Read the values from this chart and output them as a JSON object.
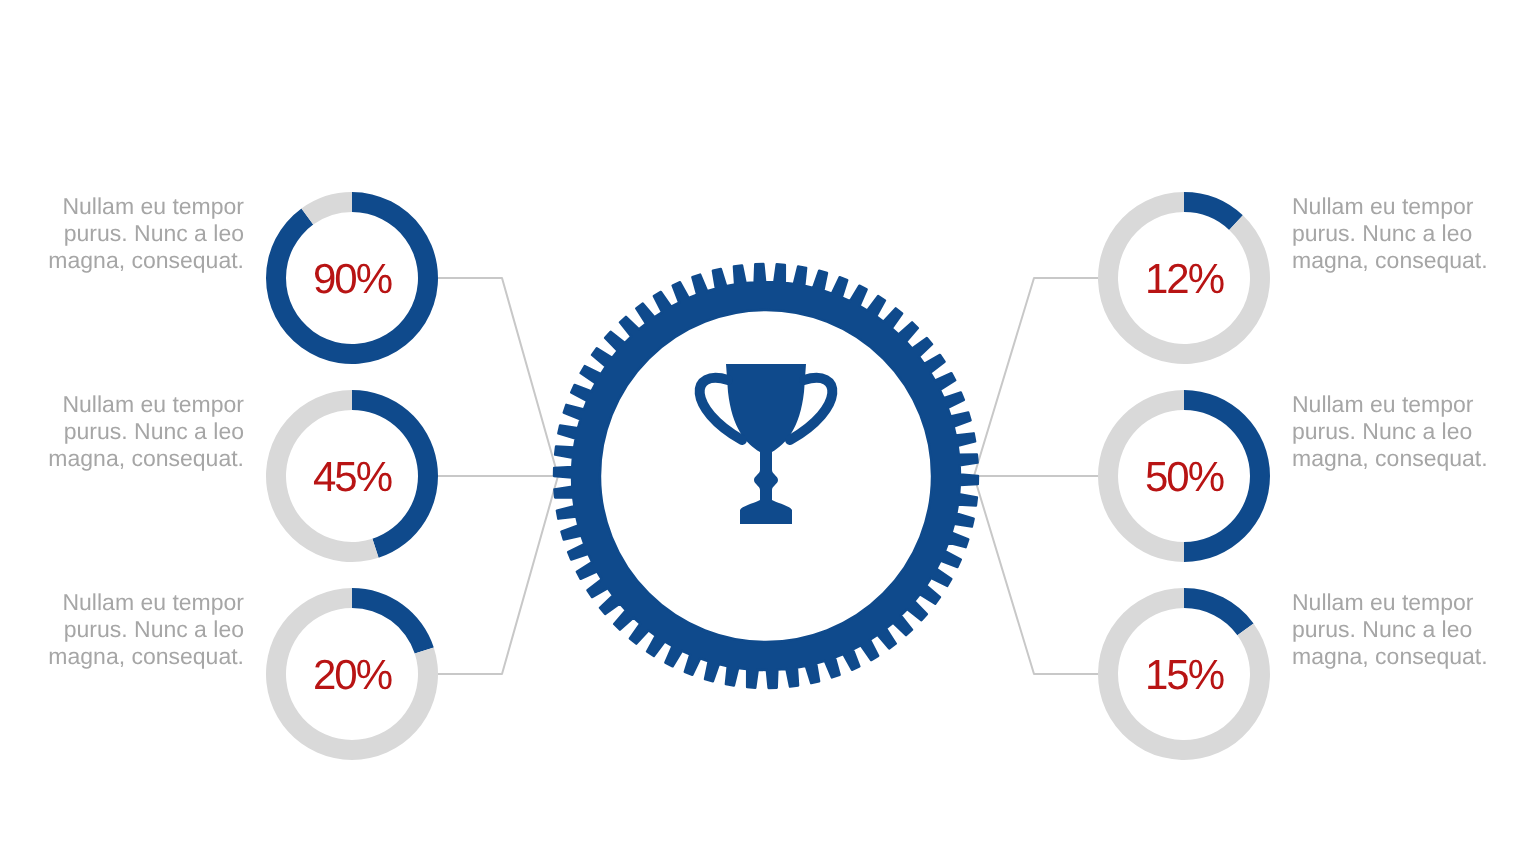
{
  "chart_data": [
    {
      "type": "donut",
      "categories": [
        null,
        null
      ],
      "values": [
        90,
        10
      ],
      "colors": [
        "#0f4a8c",
        "#d9d9d9"
      ],
      "annotations": [
        "90%",
        "Nullam eu tempor purus. Nunc a leo magna, consequat."
      ]
    },
    {
      "type": "donut",
      "categories": [
        null,
        null
      ],
      "values": [
        12,
        88
      ],
      "colors": [
        "#0f4a8c",
        "#d9d9d9"
      ],
      "annotations": [
        "12%",
        "Nullam eu tempor purus. Nunc a leo magna, consequat."
      ]
    },
    {
      "type": "donut",
      "categories": [
        null,
        null
      ],
      "values": [
        45,
        55
      ],
      "colors": [
        "#0f4a8c",
        "#d9d9d9"
      ],
      "annotations": [
        "45%",
        "Nullam eu tempor purus. Nunc a leo magna, consequat."
      ]
    },
    {
      "type": "donut",
      "categories": [
        null,
        null
      ],
      "values": [
        50,
        50
      ],
      "colors": [
        "#0f4a8c",
        "#d9d9d9"
      ],
      "annotations": [
        "50%",
        "Nullam eu tempor purus. Nunc a leo magna, consequat."
      ]
    },
    {
      "type": "donut",
      "categories": [
        null,
        null
      ],
      "values": [
        20,
        80
      ],
      "colors": [
        "#0f4a8c",
        "#d9d9d9"
      ],
      "annotations": [
        "20%",
        "Nullam eu tempor purus. Nunc a leo magna, consequat."
      ]
    },
    {
      "type": "donut",
      "categories": [
        null,
        null
      ],
      "values": [
        15,
        85
      ],
      "colors": [
        "#0f4a8c",
        "#d9d9d9"
      ],
      "annotations": [
        "15%",
        "Nullam eu tempor purus. Nunc a leo magna, consequat."
      ]
    }
  ]
}
